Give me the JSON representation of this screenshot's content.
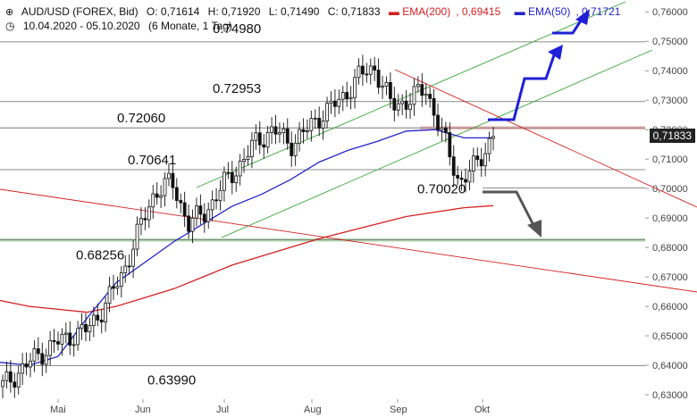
{
  "header": {
    "instrument": "AUD/USD (FOREX, Bid)",
    "open": "O: 0,71614",
    "high": "H: 0,71920",
    "low": "L: 0,71490",
    "close": "C: 0,71833",
    "ema200_label": "EMA(200)",
    "ema200_value": "0,69415",
    "ema50_label": "EMA(50)",
    "ema50_value": "0,71721",
    "range": "10.04.2020 - 05.10.2020",
    "period": "(6 Monate, 1 Tag)"
  },
  "colors": {
    "ema200": "#d42020",
    "ema50": "#2323c8",
    "channel": "#3aa63a",
    "resistance": "#d42020",
    "arrow_up": "#1f1fd8",
    "arrow_down": "#555555",
    "candles": "#111111"
  },
  "current_price": "0,71833",
  "chart_data": {
    "type": "line",
    "y_axis": {
      "ylim": [
        0.6285,
        0.7625
      ],
      "ticks": [
        0.76,
        0.75,
        0.74,
        0.73,
        0.72,
        0.71,
        0.7,
        0.69,
        0.68,
        0.67,
        0.66,
        0.65,
        0.64,
        0.63
      ],
      "tick_labels": [
        "0,76000",
        "0,75000",
        "0,74000",
        "0,73000",
        "0,72000",
        "0,71000",
        "0,70000",
        "0,69000",
        "0,68000",
        "0,67000",
        "0,66000",
        "0,65000",
        "0,64000",
        "0,63000"
      ]
    },
    "x_axis": {
      "labels": [
        "Mai",
        "Jun",
        "Jul",
        "Aug",
        "Sep",
        "Okt"
      ]
    },
    "horizontal_levels": [
      {
        "value": 0.7498,
        "label": "0.74980"
      },
      {
        "value": 0.72953,
        "label": "0.72953"
      },
      {
        "value": 0.7206,
        "label": "0.72060"
      },
      {
        "value": 0.70641,
        "label": "0.70641"
      },
      {
        "value": 0.7002,
        "label": "0.70020"
      },
      {
        "value": 0.68256,
        "label": "0.68256"
      },
      {
        "value": 0.6399,
        "label": "0.63990"
      }
    ],
    "series": [
      {
        "name": "EMA(200)",
        "values": [
          0.662,
          0.66,
          0.659,
          0.658,
          0.66,
          0.663,
          0.666,
          0.67,
          0.674,
          0.677,
          0.68,
          0.683,
          0.6855,
          0.688,
          0.6905,
          0.692,
          0.6935,
          0.6942
        ]
      },
      {
        "name": "EMA(50)",
        "values": [
          0.641,
          0.64,
          0.643,
          0.656,
          0.668,
          0.675,
          0.682,
          0.688,
          0.694,
          0.698,
          0.703,
          0.709,
          0.713,
          0.716,
          0.7195,
          0.72,
          0.7172,
          0.7172
        ]
      },
      {
        "name": "AUD/USD",
        "values": [
          0.633,
          0.638,
          0.643,
          0.647,
          0.65,
          0.652,
          0.66,
          0.67,
          0.685,
          0.699,
          0.702,
          0.688,
          0.692,
          0.701,
          0.708,
          0.716,
          0.72,
          0.715,
          0.72,
          0.726,
          0.73,
          0.738,
          0.741,
          0.728,
          0.73,
          0.734,
          0.718,
          0.702,
          0.708,
          0.7183
        ]
      }
    ]
  }
}
